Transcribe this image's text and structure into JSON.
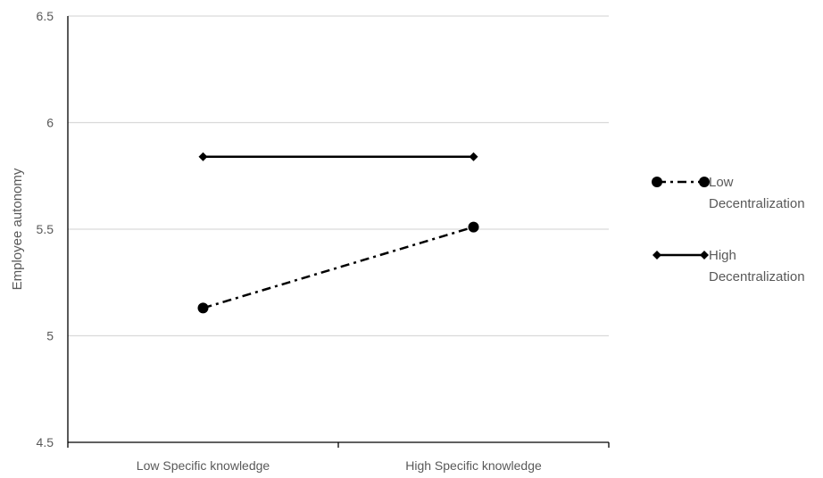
{
  "chart_data": {
    "type": "line",
    "title": "",
    "xlabel": "",
    "ylabel": "Employee autonomy",
    "categories": [
      "Low Specific knowledge",
      "High Specific knowledge"
    ],
    "ylim": [
      4.5,
      6.5
    ],
    "yticks": [
      "4.5",
      "5",
      "5.5",
      "6",
      "6.5"
    ],
    "grid": true,
    "legend_position": "right",
    "series": [
      {
        "name_lines": [
          "Low",
          "Decentralization"
        ],
        "values": [
          5.13,
          5.51
        ],
        "marker": "circle",
        "line_style": "dash-dot",
        "color": "#000000"
      },
      {
        "name_lines": [
          "High",
          "Decentralization"
        ],
        "values": [
          5.84,
          5.84
        ],
        "marker": "diamond",
        "line_style": "solid",
        "color": "#000000"
      }
    ],
    "colors": {
      "grid": "#d9d9d9",
      "axis": "#000000",
      "text": "#595959"
    }
  }
}
